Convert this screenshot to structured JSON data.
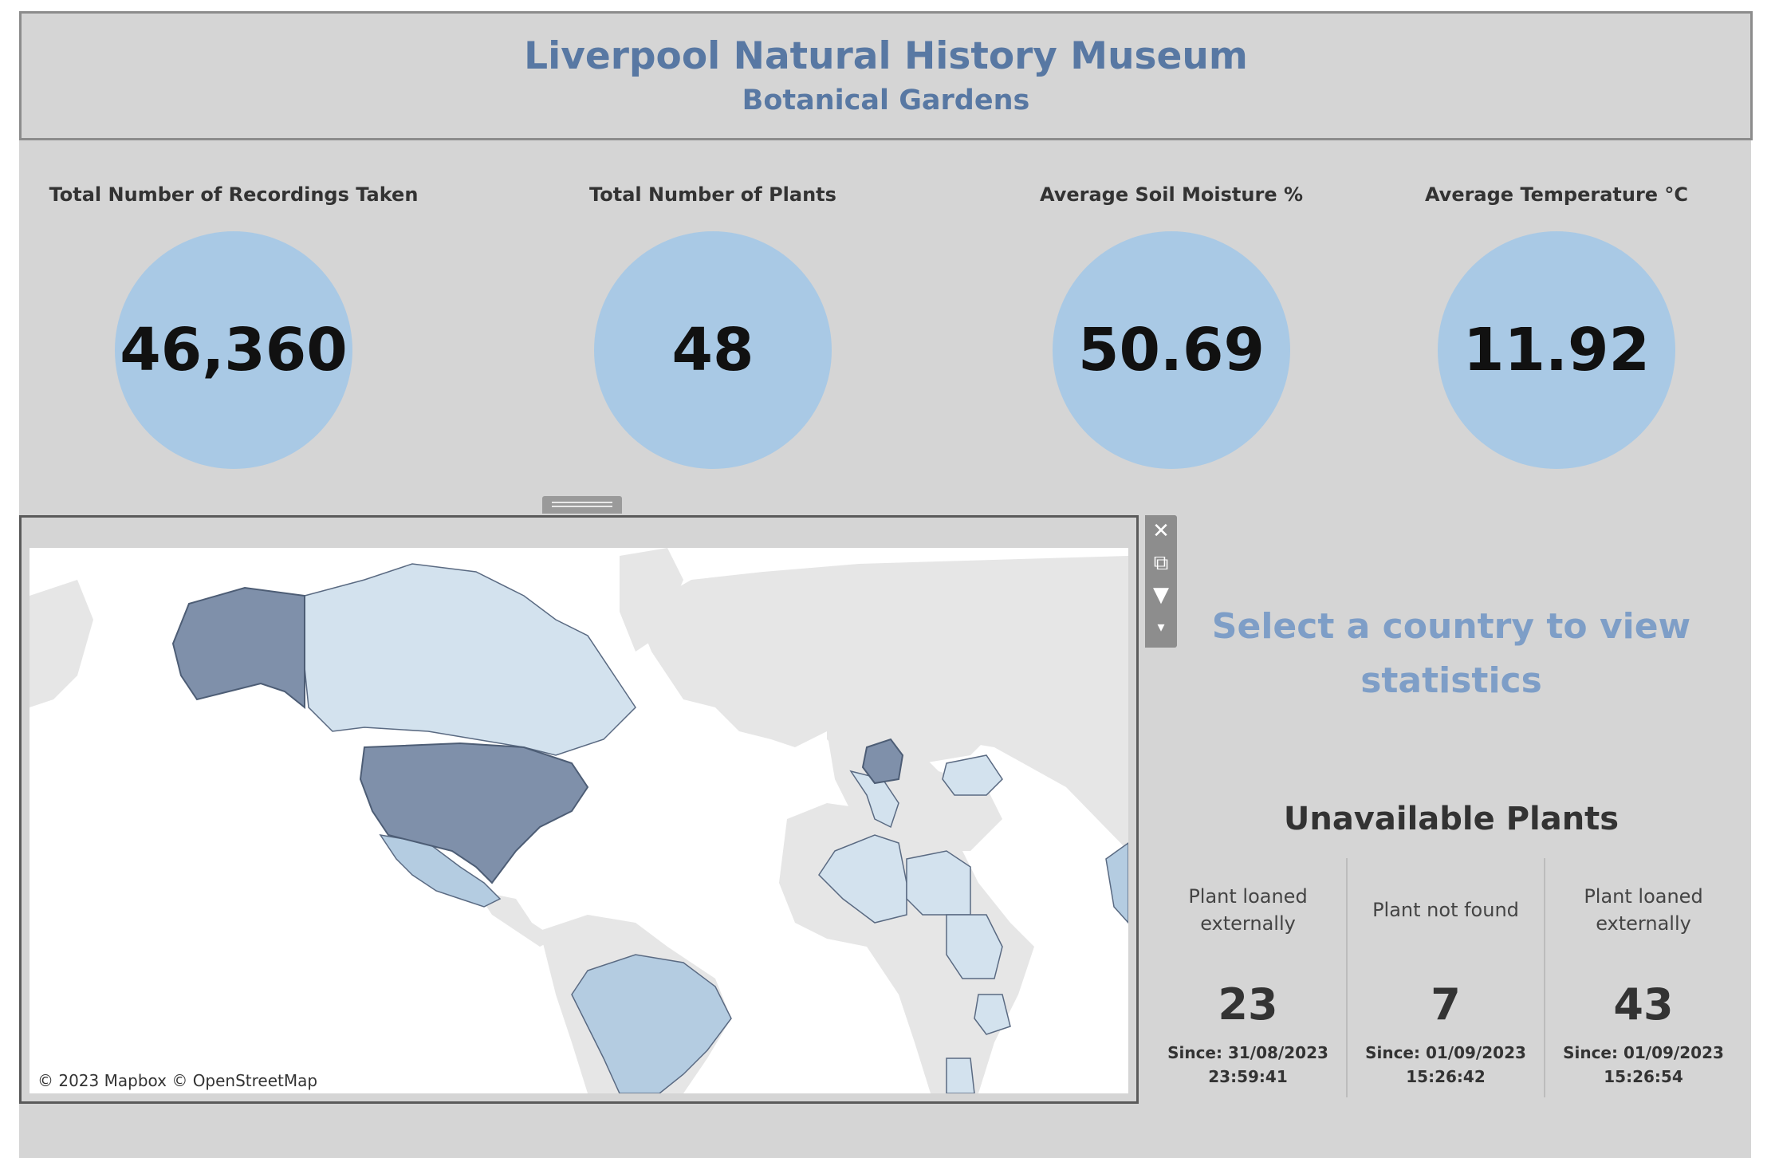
{
  "header": {
    "title": "Liverpool Natural History Museum",
    "subtitle": "Botanical Gardens"
  },
  "kpis": [
    {
      "label": "Total Number of Recordings Taken",
      "value": "46,360"
    },
    {
      "label": "Total Number of Plants",
      "value": "48"
    },
    {
      "label": "Average Soil Moisture %",
      "value": "50.69"
    },
    {
      "label": "Average Temperature °C",
      "value": "11.92"
    }
  ],
  "map": {
    "attribution": "© 2023 Mapbox  © OpenStreetMap",
    "colors": {
      "ocean": "#ffffff",
      "land": "#e6e6e6",
      "light": "#d3e2ee",
      "mid": "#b4cce1",
      "dark": "#7f90aa"
    },
    "highlighted_countries": [
      "Canada",
      "United States",
      "Mexico",
      "Brazil",
      "Germany",
      "Ukraine",
      "Algeria",
      "Libya",
      "Sudan",
      "Tanzania",
      "Mozambique",
      "Switzerland",
      "Italy",
      "India"
    ]
  },
  "toolbar": {
    "icons": [
      "close-icon",
      "popout-icon",
      "filter-icon",
      "dropdown-arrow-icon"
    ]
  },
  "prompt": "Select a country to view statistics",
  "unavailable": {
    "title": "Unavailable Plants",
    "items": [
      {
        "reason_line1": "Plant loaned",
        "reason_line2": "externally",
        "count": "23",
        "since_date": "Since: 31/08/2023",
        "since_time": "23:59:41"
      },
      {
        "reason_line1": "Plant not found",
        "reason_line2": "",
        "count": "7",
        "since_date": "Since: 01/09/2023",
        "since_time": "15:26:42"
      },
      {
        "reason_line1": "Plant loaned",
        "reason_line2": "externally",
        "count": "43",
        "since_date": "Since: 01/09/2023",
        "since_time": "15:26:54"
      }
    ]
  }
}
